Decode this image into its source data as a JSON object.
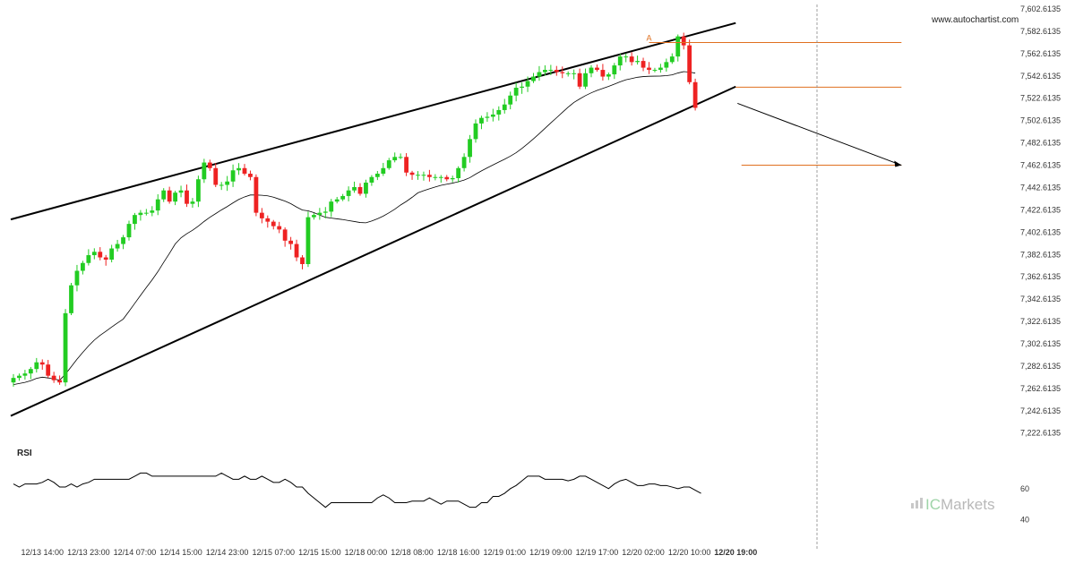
{
  "source_label": "www.autochartist.com",
  "brand": {
    "prefix": "IC",
    "suffix": "Markets"
  },
  "colors": {
    "up": "#22cc22",
    "down": "#ee2222",
    "level": "#e07020",
    "trend": "#000000"
  },
  "chart_data": [
    {
      "type": "candlestick",
      "title": "",
      "ylim": [
        7220,
        7605
      ],
      "y_ticks": [
        "7,602.6135",
        "7,582.6135",
        "7,562.6135",
        "7,542.6135",
        "7,522.6135",
        "7,502.6135",
        "7,482.6135",
        "7,462.6135",
        "7,442.6135",
        "7,422.6135",
        "7,402.6135",
        "7,382.6135",
        "7,362.6135",
        "7,342.6135",
        "7,322.6135",
        "7,302.6135",
        "7,282.6135",
        "7,262.6135",
        "7,242.6135",
        "7,222.6135"
      ],
      "x_ticks": [
        "12/13 14:00",
        "12/13 23:00",
        "12/14 07:00",
        "12/14 15:00",
        "12/14 23:00",
        "12/15 07:00",
        "12/15 15:00",
        "12/18 00:00",
        "12/18 08:00",
        "12/18 16:00",
        "12/19 01:00",
        "12/19 09:00",
        "12/19 17:00",
        "12/20 02:00",
        "12/20 10:00",
        "12/20 19:00"
      ],
      "x_tick_index": [
        5,
        13,
        21,
        29,
        37,
        45,
        53,
        61,
        69,
        77,
        85,
        93,
        101,
        109,
        117,
        125
      ],
      "bold_tick": "12/20 19:00",
      "series_close": [
        7272,
        7274,
        7276,
        7280,
        7286,
        7284,
        7274,
        7270,
        7268,
        7330,
        7355,
        7368,
        7375,
        7382,
        7385,
        7380,
        7378,
        7388,
        7392,
        7398,
        7410,
        7418,
        7420,
        7420,
        7422,
        7432,
        7440,
        7430,
        7438,
        7440,
        7428,
        7430,
        7450,
        7465,
        7460,
        7445,
        7445,
        7448,
        7458,
        7460,
        7455,
        7452,
        7420,
        7415,
        7412,
        7408,
        7405,
        7395,
        7392,
        7380,
        7374,
        7416,
        7418,
        7420,
        7421,
        7430,
        7432,
        7435,
        7440,
        7443,
        7437,
        7447,
        7452,
        7455,
        7460,
        7467,
        7470,
        7470,
        7456,
        7454,
        7454,
        7454,
        7452,
        7452,
        7452,
        7450,
        7451,
        7460,
        7470,
        7486,
        7500,
        7505,
        7506,
        7508,
        7512,
        7517,
        7525,
        7532,
        7533,
        7538,
        7542,
        7546,
        7548,
        7548,
        7546,
        7545,
        7545,
        7545,
        7533,
        7545,
        7550,
        7548,
        7542,
        7544,
        7552,
        7560,
        7560,
        7555,
        7556,
        7550,
        7548,
        7548,
        7550,
        7555,
        7560,
        7578,
        7570,
        7537,
        7514
      ],
      "markers": {
        "A_index": 110,
        "A_value": 7572.5
      },
      "trend_upper": {
        "x": [
          0,
          125
        ],
        "y": [
          7414,
          7590
        ]
      },
      "trend_lower": {
        "x": [
          0,
          125
        ],
        "y": [
          7238,
          7533
        ]
      },
      "level_lines": [
        {
          "value": 7572.5,
          "x_from": 110,
          "x_to": 154
        },
        {
          "value": 7532.5,
          "x_from": 125,
          "x_to": 154
        },
        {
          "value": 7462.6,
          "x_from": 126,
          "x_to": 154
        }
      ],
      "forecast_arrow": {
        "x": [
          125,
          154
        ],
        "y": [
          7518,
          7462.6
        ]
      }
    },
    {
      "type": "line",
      "title": "RSI",
      "ylim": [
        30,
        80
      ],
      "y_ticks": [
        "60",
        "40"
      ],
      "values": [
        63,
        61,
        63,
        63,
        63,
        64,
        66,
        64,
        61,
        61,
        63,
        61,
        63,
        64,
        66,
        66,
        66,
        66,
        66,
        66,
        66,
        68,
        70,
        70,
        68,
        68,
        68,
        68,
        68,
        68,
        68,
        68,
        68,
        68,
        68,
        68,
        70,
        68,
        66,
        66,
        68,
        66,
        66,
        68,
        66,
        64,
        64,
        66,
        64,
        61,
        61,
        57,
        54,
        51,
        48,
        51,
        51,
        51,
        51,
        51,
        51,
        51,
        51,
        54,
        56,
        54,
        51,
        51,
        51,
        52,
        52,
        52,
        54,
        52,
        50,
        52,
        52,
        52,
        50,
        48,
        48,
        51,
        51,
        55,
        55,
        57,
        60,
        62,
        65,
        68,
        68,
        68,
        66,
        66,
        66,
        66,
        65,
        66,
        68,
        68,
        66,
        64,
        62,
        60,
        63,
        65,
        66,
        64,
        62,
        62,
        63,
        63,
        62,
        62,
        61,
        60,
        61,
        61,
        59,
        57
      ]
    }
  ]
}
